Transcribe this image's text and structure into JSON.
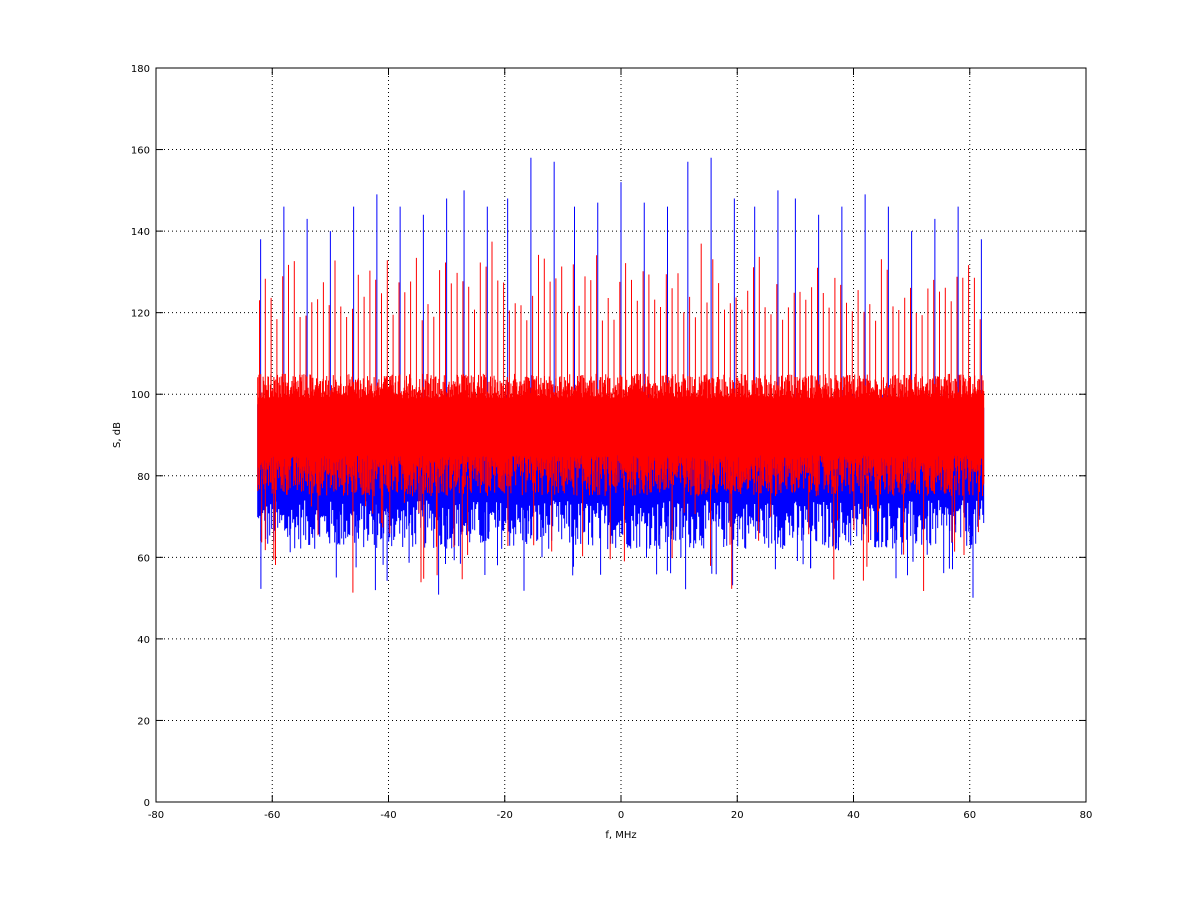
{
  "chart_data": {
    "type": "line",
    "xlabel": "f, MHz",
    "ylabel": "S, dB",
    "xlim": [
      -80,
      80
    ],
    "ylim": [
      0,
      180
    ],
    "xticks": [
      -80,
      -60,
      -40,
      -20,
      0,
      20,
      40,
      60,
      80
    ],
    "yticks": [
      0,
      20,
      40,
      60,
      80,
      100,
      120,
      140,
      160,
      180
    ],
    "grid": true,
    "grid_style": "dotted",
    "legend": "none",
    "data_range_x": [
      -62.5,
      62.5
    ],
    "series": [
      {
        "color": "#0000ff",
        "description": "dense spectrum, noise floor about 65–100 dB, periodic spikes up to ~158 dB",
        "noise_band": [
          62,
          100
        ],
        "min_dips": [
          50,
          52,
          52,
          50,
          55,
          56
        ],
        "peaks": [
          {
            "x": -62.0,
            "y": 138
          },
          {
            "x": -58.0,
            "y": 146
          },
          {
            "x": -54.0,
            "y": 143
          },
          {
            "x": -50.0,
            "y": 140
          },
          {
            "x": -46.0,
            "y": 146
          },
          {
            "x": -42.0,
            "y": 149
          },
          {
            "x": -38.0,
            "y": 146
          },
          {
            "x": -34.0,
            "y": 144
          },
          {
            "x": -30.0,
            "y": 148
          },
          {
            "x": -27.0,
            "y": 150
          },
          {
            "x": -23.0,
            "y": 146
          },
          {
            "x": -19.5,
            "y": 148
          },
          {
            "x": -15.5,
            "y": 158
          },
          {
            "x": -11.5,
            "y": 157
          },
          {
            "x": -8.0,
            "y": 146
          },
          {
            "x": -4.0,
            "y": 147
          },
          {
            "x": 0.0,
            "y": 152
          },
          {
            "x": 4.0,
            "y": 147
          },
          {
            "x": 8.0,
            "y": 146
          },
          {
            "x": 11.5,
            "y": 157
          },
          {
            "x": 15.5,
            "y": 158
          },
          {
            "x": 19.5,
            "y": 148
          },
          {
            "x": 23.0,
            "y": 146
          },
          {
            "x": 27.0,
            "y": 150
          },
          {
            "x": 30.0,
            "y": 148
          },
          {
            "x": 34.0,
            "y": 144
          },
          {
            "x": 38.0,
            "y": 146
          },
          {
            "x": 42.0,
            "y": 149
          },
          {
            "x": 46.0,
            "y": 146
          },
          {
            "x": 50.0,
            "y": 140
          },
          {
            "x": 54.0,
            "y": 143
          },
          {
            "x": 58.0,
            "y": 146
          },
          {
            "x": 62.0,
            "y": 138
          }
        ]
      },
      {
        "color": "#ff0000",
        "description": "dense spectrum drawn on top, noise floor about 75–105 dB, comb of spikes roughly 120–138 dB",
        "noise_band": [
          75,
          105
        ],
        "comb_top": [
          118,
          138
        ],
        "min_dips": [
          50,
          52,
          54,
          55,
          56
        ]
      }
    ]
  }
}
